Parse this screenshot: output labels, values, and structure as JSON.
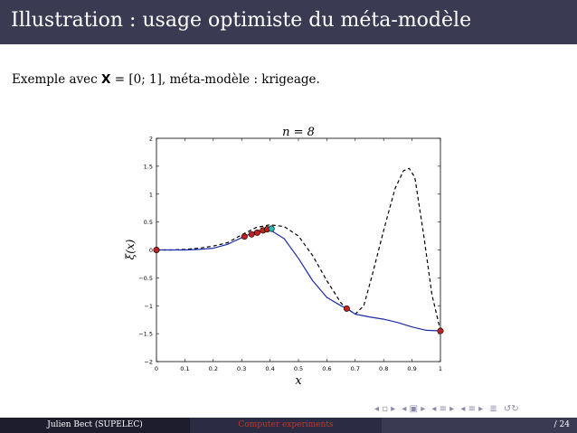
{
  "slide": {
    "title": "Illustration : usage optimiste du méta-modèle",
    "intro_before": "Exemple avec ",
    "intro_bb": "X",
    "intro_after": " = [0; 1], méta-modèle : krigeage."
  },
  "chart_data": {
    "type": "line",
    "title": "n = 8",
    "xlabel": "x",
    "ylabel": "ξ(x)",
    "xlim": [
      0,
      1
    ],
    "ylim": [
      -2,
      2
    ],
    "xticks": [
      "0",
      "0.1",
      "0.2",
      "0.3",
      "0.4",
      "0.5",
      "0.6",
      "0.7",
      "0.8",
      "0.9",
      "1"
    ],
    "yticks": [
      "−2",
      "−1.5",
      "−1",
      "−0.5",
      "0",
      "0.5",
      "1",
      "1.5",
      "2"
    ],
    "grid": false,
    "series": [
      {
        "style": "dashed",
        "color": "#000000",
        "x": [
          0,
          0.05,
          0.1,
          0.15,
          0.2,
          0.25,
          0.3,
          0.35,
          0.4,
          0.45,
          0.5,
          0.55,
          0.6,
          0.65,
          0.67,
          0.7,
          0.73,
          0.76,
          0.8,
          0.84,
          0.87,
          0.89,
          0.91,
          0.94,
          0.97,
          1.0
        ],
        "y": [
          0.0,
          0.0,
          0.01,
          0.03,
          0.07,
          0.13,
          0.27,
          0.4,
          0.45,
          0.42,
          0.25,
          -0.1,
          -0.55,
          -0.95,
          -1.05,
          -1.15,
          -1.0,
          -0.45,
          0.35,
          1.1,
          1.42,
          1.46,
          1.3,
          0.3,
          -0.8,
          -1.45
        ]
      },
      {
        "style": "solid",
        "color": "#1b2aa8",
        "x": [
          0,
          0.05,
          0.1,
          0.15,
          0.2,
          0.25,
          0.3,
          0.35,
          0.4,
          0.45,
          0.5,
          0.55,
          0.6,
          0.65,
          0.67,
          0.7,
          0.75,
          0.8,
          0.85,
          0.9,
          0.95,
          1.0
        ],
        "y": [
          0.0,
          0.0,
          0.0,
          0.01,
          0.03,
          0.1,
          0.22,
          0.33,
          0.36,
          0.2,
          -0.15,
          -0.55,
          -0.85,
          -1.0,
          -1.05,
          -1.15,
          -1.2,
          -1.24,
          -1.3,
          -1.38,
          -1.44,
          -1.45
        ]
      }
    ],
    "points": [
      {
        "x": 0.0,
        "y": 0.0,
        "color": "#c0221f"
      },
      {
        "x": 0.31,
        "y": 0.24,
        "color": "#c0221f"
      },
      {
        "x": 0.335,
        "y": 0.28,
        "color": "#c0221f"
      },
      {
        "x": 0.355,
        "y": 0.31,
        "color": "#c0221f"
      },
      {
        "x": 0.375,
        "y": 0.35,
        "color": "#c0221f"
      },
      {
        "x": 0.39,
        "y": 0.37,
        "color": "#c0221f"
      },
      {
        "x": 0.405,
        "y": 0.38,
        "color": "#2fb3b3"
      },
      {
        "x": 0.67,
        "y": -1.05,
        "color": "#c0221f"
      },
      {
        "x": 1.0,
        "y": -1.45,
        "color": "#c0221f"
      }
    ]
  },
  "footer": {
    "author": "Julien Bect  (SUPELEC)",
    "short_title": "Computer experiments",
    "page": "/ 24"
  },
  "nav_icons": [
    "left-arrow-icon",
    "right-arrow-icon",
    "frame-icon",
    "section-icon",
    "subsection-icon",
    "align-icon",
    "search-icon"
  ]
}
